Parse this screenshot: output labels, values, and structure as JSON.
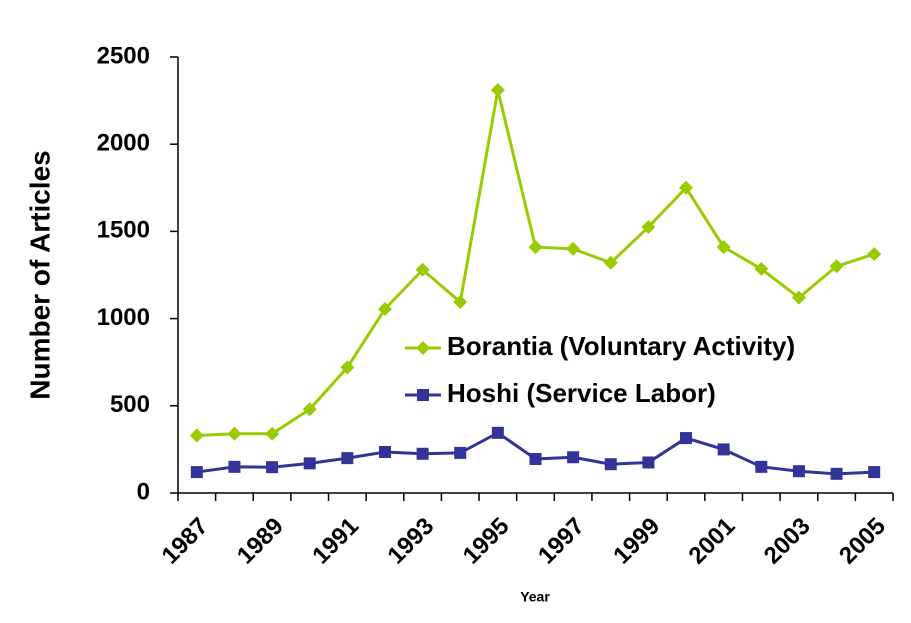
{
  "chart_data": {
    "type": "line",
    "x_label": "Year",
    "y_label": "Number of Articles",
    "categories": [
      "1987",
      null,
      "1989",
      null,
      "1991",
      null,
      "1993",
      null,
      "1995",
      null,
      "1997",
      null,
      "1999",
      null,
      "2001",
      null,
      "2003",
      null,
      "2005"
    ],
    "series": [
      {
        "name": "Borantia (Voluntary Activity)",
        "color": "#99cc00",
        "marker": "diamond",
        "values": [
          330,
          340,
          340,
          480,
          720,
          1055,
          1280,
          1095,
          2310,
          1410,
          1400,
          1320,
          1525,
          1750,
          1410,
          1285,
          1120,
          1300,
          1370
        ]
      },
      {
        "name": "Hoshi (Service Labor)",
        "color": "#333399",
        "marker": "square",
        "values": [
          120,
          150,
          148,
          170,
          200,
          235,
          225,
          230,
          345,
          195,
          205,
          165,
          175,
          315,
          250,
          150,
          125,
          110,
          120
        ]
      }
    ],
    "ylim": [
      0,
      2500
    ],
    "yticks": [
      0,
      500,
      1000,
      1500,
      2000,
      2500
    ],
    "grid": false,
    "legend": "center"
  }
}
